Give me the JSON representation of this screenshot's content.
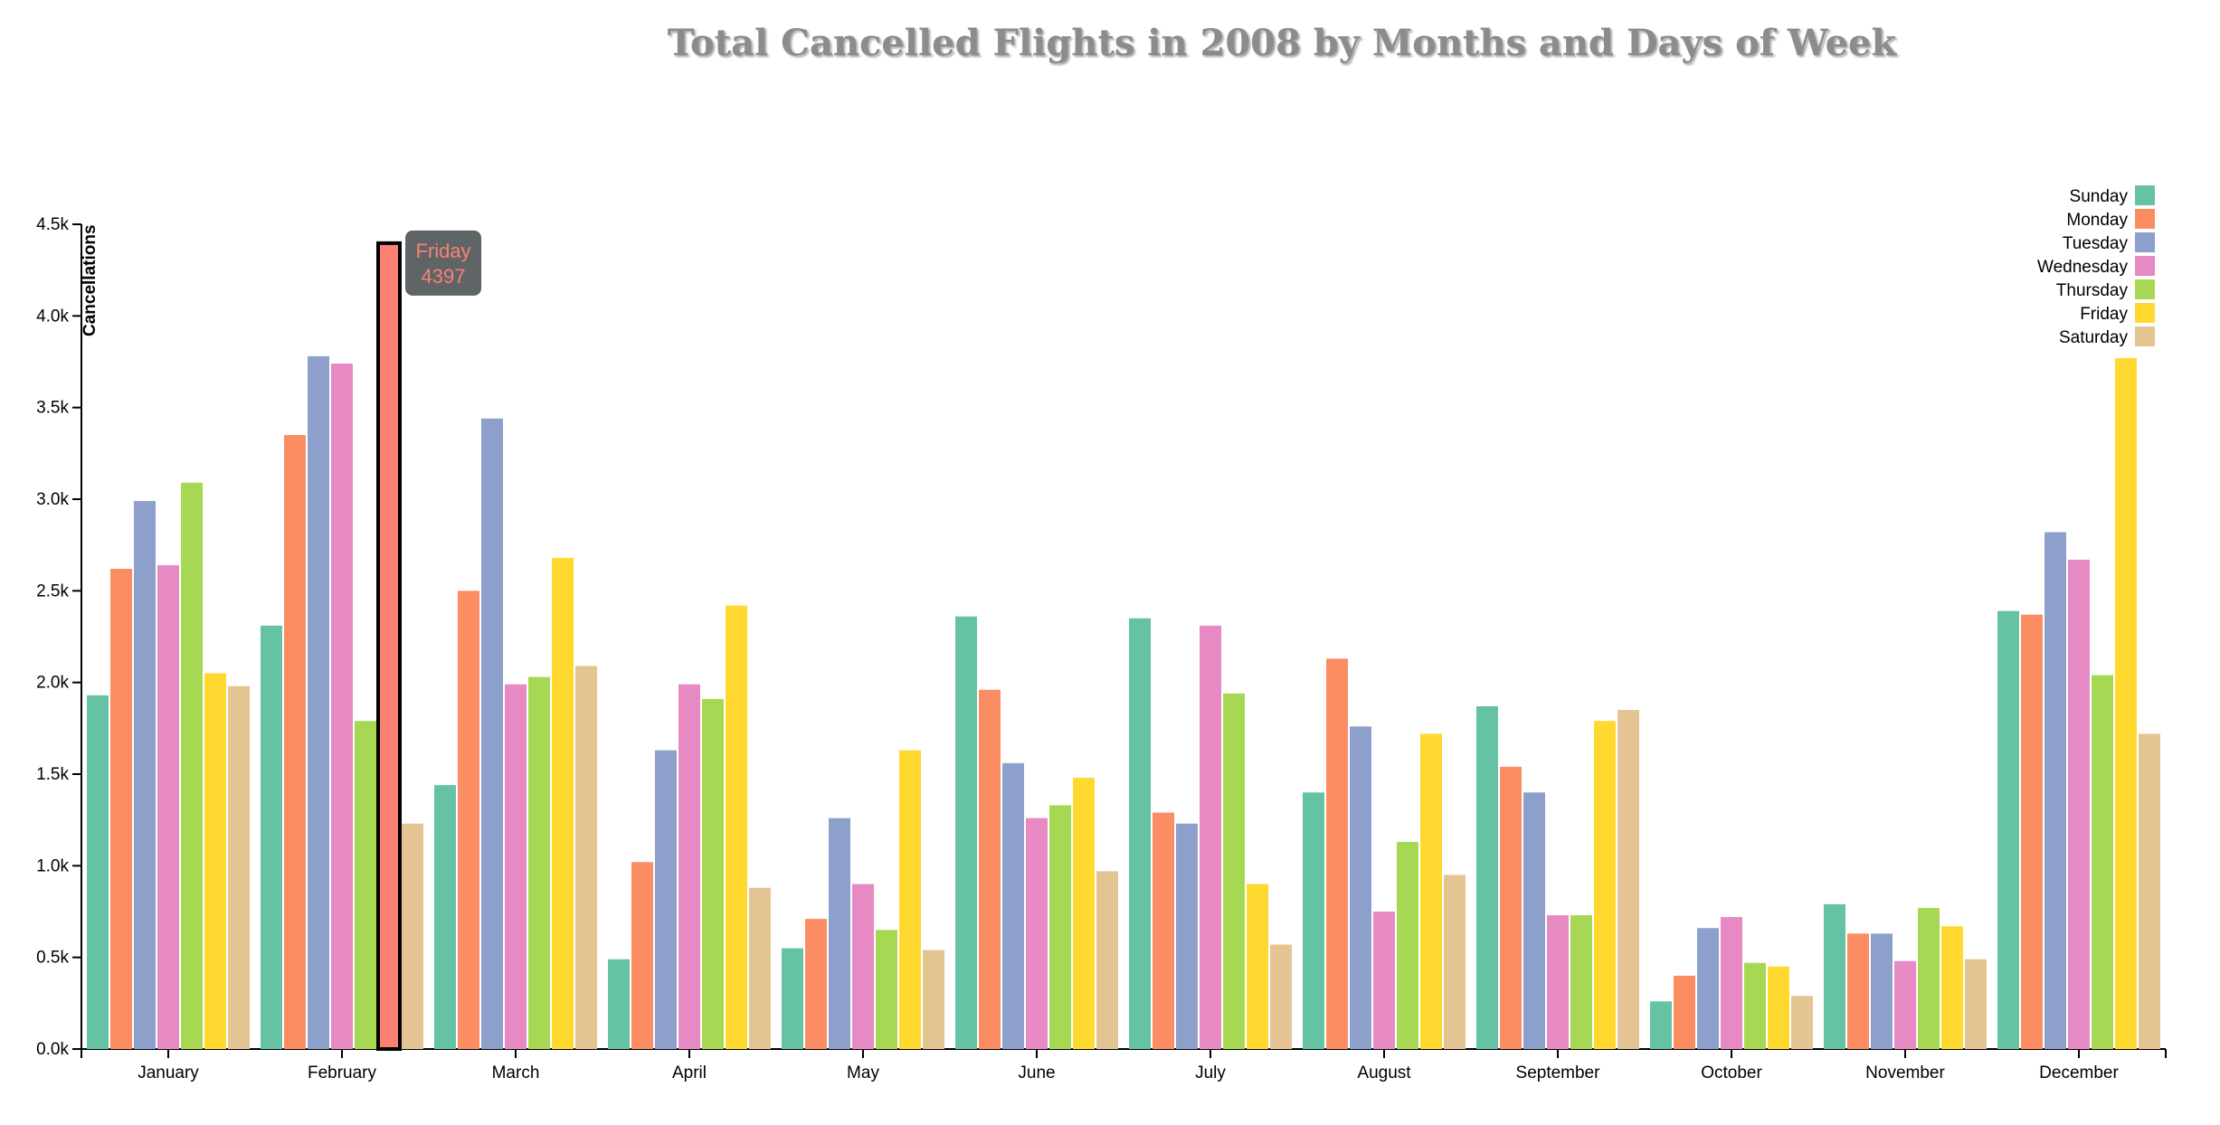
{
  "chart_data": {
    "type": "bar",
    "title": "Total Cancelled Flights in 2008 by Months and Days of Week",
    "xlabel": "",
    "ylabel": "Cancellations",
    "ylim": [
      0,
      4500
    ],
    "y_ticks": [
      0,
      500,
      1000,
      1500,
      2000,
      2500,
      3000,
      3500,
      4000,
      4500
    ],
    "y_tick_labels": [
      "0.0k",
      "0.5k",
      "1.0k",
      "1.5k",
      "2.0k",
      "2.5k",
      "3.0k",
      "3.5k",
      "4.0k",
      "4.5k"
    ],
    "categories": [
      "January",
      "February",
      "March",
      "April",
      "May",
      "June",
      "July",
      "August",
      "September",
      "October",
      "November",
      "December"
    ],
    "legend_position": "top-right",
    "grid": false,
    "series": [
      {
        "name": "Sunday",
        "color": "#66c2a5",
        "values": [
          1930,
          2310,
          1440,
          490,
          550,
          2360,
          2350,
          1400,
          1870,
          260,
          790,
          2390
        ]
      },
      {
        "name": "Monday",
        "color": "#fc8d62",
        "values": [
          2620,
          3350,
          2500,
          1020,
          710,
          1960,
          1290,
          2130,
          1540,
          400,
          630,
          2370
        ]
      },
      {
        "name": "Tuesday",
        "color": "#8da0cb",
        "values": [
          2990,
          3780,
          3440,
          1630,
          1260,
          1560,
          1230,
          1760,
          1400,
          660,
          630,
          2820
        ]
      },
      {
        "name": "Wednesday",
        "color": "#e78ac3",
        "values": [
          2640,
          3740,
          1990,
          1990,
          900,
          1260,
          2310,
          750,
          730,
          720,
          480,
          2670
        ]
      },
      {
        "name": "Thursday",
        "color": "#a6d854",
        "values": [
          3090,
          1790,
          2030,
          1910,
          650,
          1330,
          1940,
          1130,
          730,
          470,
          770,
          2040
        ]
      },
      {
        "name": "Friday",
        "color": "#ffd92f",
        "values": [
          2050,
          4397,
          2680,
          2420,
          1630,
          1480,
          900,
          1720,
          1790,
          450,
          670,
          3770
        ]
      },
      {
        "name": "Saturday",
        "color": "#e5c494",
        "values": [
          1980,
          1230,
          2090,
          880,
          540,
          970,
          570,
          950,
          1850,
          290,
          490,
          1720
        ]
      }
    ],
    "highlight": {
      "category_index": 1,
      "series_index": 5,
      "color": "#fa8072"
    },
    "tooltip": {
      "label": "Friday",
      "value": "4397"
    }
  }
}
